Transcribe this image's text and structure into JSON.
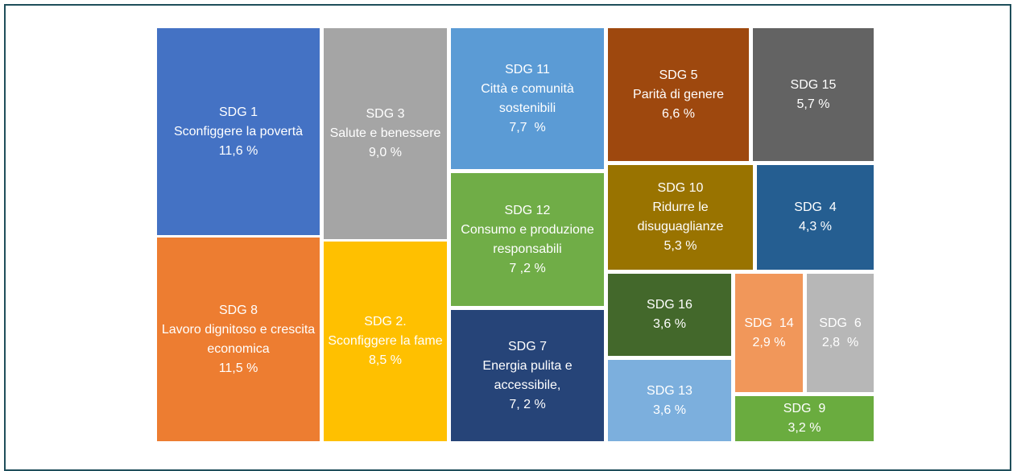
{
  "chart_data": {
    "type": "treemap",
    "categories": [
      "SDG 1",
      "SDG 8",
      "SDG 3",
      "SDG 2.",
      "SDG 11",
      "SDG 12",
      "SDG 7",
      "SDG 5",
      "SDG 15",
      "SDG 10",
      "SDG  4",
      "SDG 16",
      "SDG 13",
      "SDG  14",
      "SDG  6",
      "SDG  9"
    ],
    "descriptions": [
      "Sconfiggere la povertà",
      "Lavoro dignitoso e crescita economica",
      "Salute e benessere",
      "Sconfiggere la fame",
      "Città e comunità sostenibili",
      "Consumo e produzione responsabili",
      "Energia pulita e accessibile,",
      "Parità di genere",
      null,
      "Ridurre le disuguaglianze",
      null,
      null,
      null,
      null,
      null,
      null
    ],
    "values": [
      11.6,
      11.5,
      9.0,
      8.5,
      7.7,
      7.2,
      7.2,
      6.6,
      5.7,
      5.3,
      4.3,
      3.6,
      3.6,
      2.9,
      2.8,
      3.2
    ],
    "value_labels": [
      "11,6 %",
      "11,5 %",
      "9,0 %",
      "8,5 %",
      "7,7  %",
      "7 ,2 %",
      "7, 2 %",
      "6,6 %",
      "5,7 %",
      "5,3 %",
      "4,3 %",
      "3,6 %",
      "3,6 %",
      "2,9 %",
      "2,8  %",
      "3,2 %"
    ],
    "colors": [
      "#4472c4",
      "#ed7d31",
      "#a5a5a5",
      "#ffc000",
      "#5b9bd5",
      "#70ad47",
      "#264478",
      "#9e480e",
      "#636363",
      "#997300",
      "#255e91",
      "#43682b",
      "#7cafdd",
      "#f1975a",
      "#b7b7b7",
      "#6aac3f"
    ]
  }
}
